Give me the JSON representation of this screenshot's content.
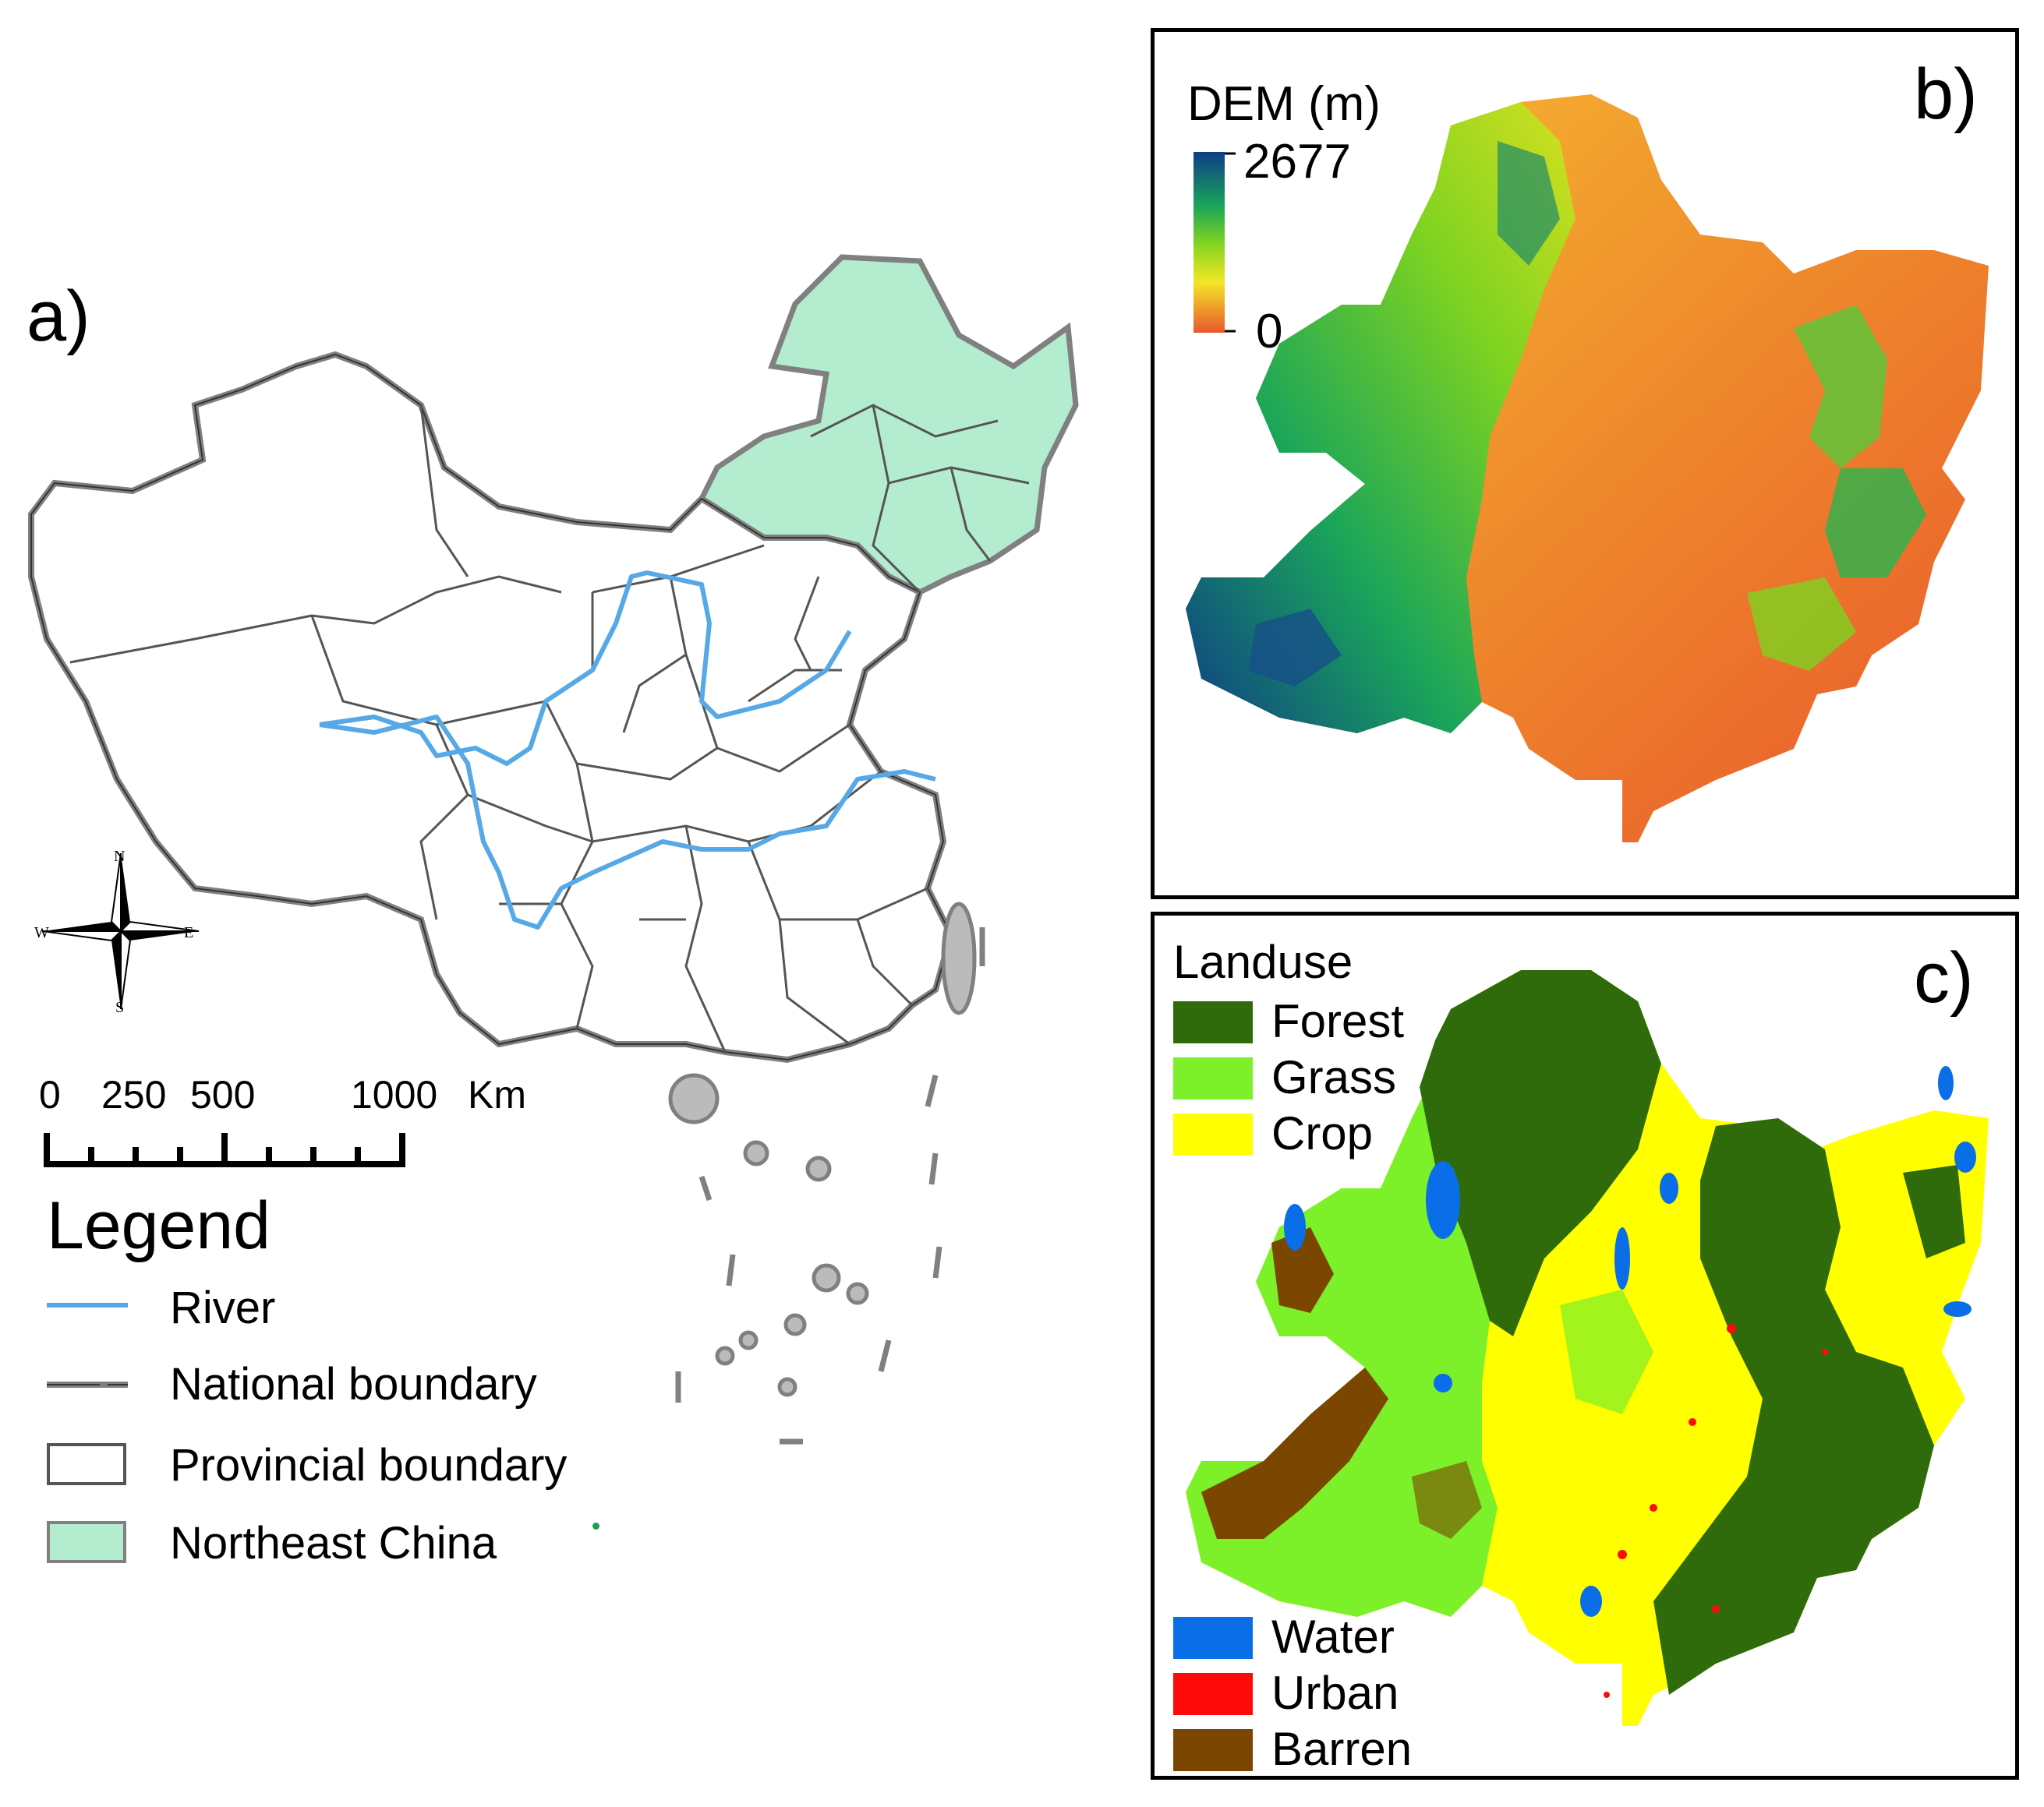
{
  "panel_a": {
    "label": "a)",
    "compass": {
      "n": "N",
      "s": "S",
      "e": "E",
      "w": "W"
    },
    "scale_bar": {
      "ticks": [
        "0",
        "250",
        "500",
        "1000"
      ],
      "unit": "Km"
    },
    "legend": {
      "title": "Legend",
      "items": [
        {
          "label": "River",
          "symbol": "line",
          "color": "#56a8e6"
        },
        {
          "label": "National boundary",
          "symbol": "dash-line",
          "color": "#808080"
        },
        {
          "label": "Provincial boundary",
          "symbol": "box",
          "color": "#ffffff"
        },
        {
          "label": "Northeast China",
          "symbol": "box",
          "color": "#b4ecd0"
        }
      ]
    }
  },
  "panel_b": {
    "label": "b)",
    "legend": {
      "title": "DEM (m)",
      "max": "2677",
      "min": "0"
    },
    "colors": {
      "high": "#0e3d87",
      "mid_high": "#1aa55a",
      "mid": "#7ed321",
      "mid_low": "#f3e626",
      "low": "#e8572c"
    }
  },
  "panel_c": {
    "label": "c)",
    "legend": {
      "title": "Landuse",
      "items": [
        {
          "label": "Forest",
          "color": "#2f6b0a"
        },
        {
          "label": "Grass",
          "color": "#7cf028"
        },
        {
          "label": "Crop",
          "color": "#ffff00"
        },
        {
          "label": "Water",
          "color": "#0a6ee8"
        },
        {
          "label": "Urban",
          "color": "#ff0a0a"
        },
        {
          "label": "Barren",
          "color": "#7a4600"
        }
      ]
    }
  }
}
